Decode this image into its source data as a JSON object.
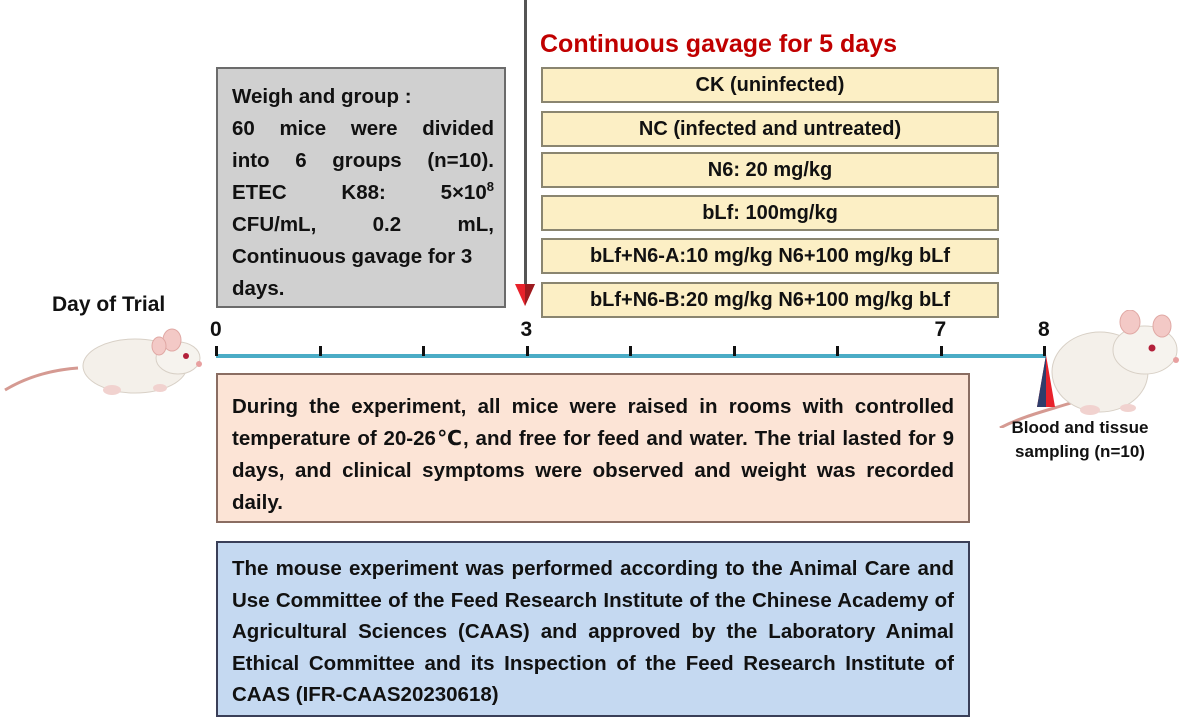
{
  "weigh_box": {
    "title": "Weigh and group :",
    "line1": [
      "60",
      "mice",
      "were",
      "divided"
    ],
    "line2": [
      "into",
      "6",
      "groups",
      "(n=10)."
    ],
    "line3_a": "ETEC",
    "line3_b": "K88:",
    "line3_c": "5×10",
    "line3_exp": "8",
    "line4": [
      "CFU/mL,",
      "0.2",
      "mL,"
    ],
    "line5": "Continuous gavage for 3",
    "line6": "days."
  },
  "gavage": {
    "title": "Continuous gavage for 5 days",
    "groups": [
      "CK (uninfected)",
      "NC (infected and untreated)",
      "N6: 20 mg/kg",
      "bLf: 100mg/kg",
      "bLf+N6-A:10 mg/kg N6+100 mg/kg bLf",
      "bLf+N6-B:20 mg/kg N6+100 mg/kg bLf"
    ]
  },
  "timeline": {
    "label": "Day of Trial",
    "ticks": [
      {
        "day": 0,
        "label": "0"
      },
      {
        "day": 1,
        "label": ""
      },
      {
        "day": 2,
        "label": ""
      },
      {
        "day": 3,
        "label": "3"
      },
      {
        "day": 4,
        "label": ""
      },
      {
        "day": 5,
        "label": ""
      },
      {
        "day": 6,
        "label": ""
      },
      {
        "day": 7,
        "label": "7"
      },
      {
        "day": 8,
        "label": "8"
      }
    ],
    "marker_color": "#e8222b",
    "line_color": "#4bacc6"
  },
  "environment_text": "During the experiment, all mice were raised in rooms with controlled temperature of 20-26℃, and free for feed and water. The trial lasted for 9 days, and clinical symptoms were observed and weight was recorded daily.",
  "ethics_text": "The mouse experiment was performed according to the Animal Care and Use Committee of the Feed Research Institute of the Chinese Academy of Agricultural Sciences (CAAS)  and approved by the Laboratory Animal Ethical Committee and its Inspection of the Feed Research Institute of CAAS (IFR-CAAS20230618)",
  "sampling": {
    "line1": "Blood and tissue",
    "line2": "sampling (n=10)"
  },
  "colors": {
    "title_red": "#c00000",
    "group_fill": "#fcefc5",
    "weigh_fill": "#d0d0d0",
    "env_fill": "#fce4d6",
    "ethics_fill": "#c5d9f1"
  }
}
